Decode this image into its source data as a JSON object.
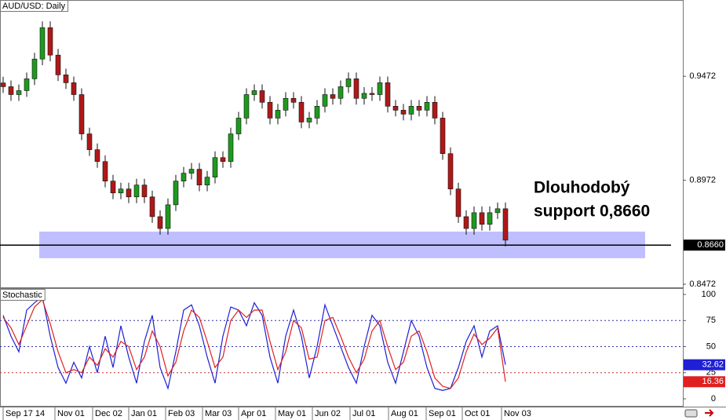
{
  "chart_data": [
    {
      "type": "candlestick",
      "title": "AUD/USD: Daily",
      "open": [
        0.944,
        0.9422,
        0.9384,
        0.9403,
        0.946,
        0.9555,
        0.9706,
        0.9574,
        0.9479,
        0.9441,
        0.9384,
        0.9195,
        0.9119,
        0.9062,
        0.8968,
        0.8911,
        0.893,
        0.8892,
        0.8949,
        0.8892,
        0.8797,
        0.874,
        0.8854,
        0.8968,
        0.9006,
        0.9025,
        0.8949,
        0.8987,
        0.9081,
        0.9062,
        0.9195,
        0.9271,
        0.9384,
        0.9403,
        0.9347,
        0.9271,
        0.9309,
        0.9366,
        0.9347,
        0.9252,
        0.9271,
        0.9328,
        0.9384,
        0.9366,
        0.9422,
        0.946,
        0.9366,
        0.939,
        0.9384,
        0.9441,
        0.9328,
        0.9309,
        0.929,
        0.9328,
        0.9309,
        0.9347,
        0.9271,
        0.91,
        0.893,
        0.8797,
        0.874,
        0.8816,
        0.876,
        0.8816,
        0.8835
      ],
      "high": [
        0.947,
        0.9452,
        0.9433,
        0.949,
        0.9585,
        0.9736,
        0.9736,
        0.9604,
        0.9509,
        0.9471,
        0.9414,
        0.9225,
        0.9149,
        0.9092,
        0.8998,
        0.896,
        0.896,
        0.8979,
        0.8979,
        0.8922,
        0.8827,
        0.8884,
        0.8998,
        0.9036,
        0.9055,
        0.9055,
        0.9017,
        0.9111,
        0.9111,
        0.9225,
        0.9301,
        0.9414,
        0.9433,
        0.9433,
        0.9377,
        0.9339,
        0.9396,
        0.9396,
        0.9377,
        0.9301,
        0.9358,
        0.9414,
        0.9414,
        0.9452,
        0.949,
        0.949,
        0.942,
        0.942,
        0.9471,
        0.9471,
        0.9358,
        0.9339,
        0.9358,
        0.9358,
        0.9377,
        0.9377,
        0.9301,
        0.913,
        0.896,
        0.8827,
        0.8846,
        0.8846,
        0.8846,
        0.8865,
        0.8865
      ],
      "low": [
        0.9392,
        0.9354,
        0.9354,
        0.9373,
        0.943,
        0.9525,
        0.9544,
        0.9449,
        0.9411,
        0.9354,
        0.9165,
        0.9089,
        0.9032,
        0.8938,
        0.8881,
        0.8881,
        0.8862,
        0.8862,
        0.8862,
        0.8767,
        0.871,
        0.871,
        0.8824,
        0.8938,
        0.8976,
        0.8919,
        0.8919,
        0.8957,
        0.9032,
        0.9032,
        0.9165,
        0.9241,
        0.9354,
        0.9317,
        0.9241,
        0.9241,
        0.9279,
        0.9317,
        0.9222,
        0.9222,
        0.9241,
        0.9298,
        0.9336,
        0.9336,
        0.9392,
        0.9336,
        0.9336,
        0.9354,
        0.9354,
        0.9298,
        0.9279,
        0.926,
        0.926,
        0.9279,
        0.9279,
        0.9241,
        0.907,
        0.89,
        0.8767,
        0.871,
        0.871,
        0.873,
        0.873,
        0.8786,
        0.8654
      ],
      "close": [
        0.9422,
        0.9384,
        0.9403,
        0.946,
        0.9555,
        0.9706,
        0.9574,
        0.9479,
        0.9441,
        0.9384,
        0.9195,
        0.9119,
        0.9062,
        0.8968,
        0.8911,
        0.893,
        0.8892,
        0.8949,
        0.8892,
        0.8797,
        0.874,
        0.8854,
        0.8968,
        0.9006,
        0.9025,
        0.8949,
        0.8987,
        0.9081,
        0.9062,
        0.9195,
        0.9271,
        0.9384,
        0.9403,
        0.9347,
        0.9271,
        0.9309,
        0.9366,
        0.9347,
        0.9252,
        0.9271,
        0.9328,
        0.9384,
        0.9366,
        0.9422,
        0.946,
        0.9366,
        0.939,
        0.9384,
        0.9441,
        0.9328,
        0.9309,
        0.929,
        0.9328,
        0.9309,
        0.9347,
        0.9271,
        0.91,
        0.893,
        0.8797,
        0.874,
        0.8816,
        0.876,
        0.8816,
        0.8835,
        0.8684
      ],
      "up_color": "#1e9a1e",
      "down_color": "#b01818",
      "xlim": [
        -0.4,
        86.6
      ],
      "ylim": [
        0.8457,
        0.9839
      ],
      "yticks": [
        0.9472,
        0.8972,
        0.8472
      ],
      "support_zone": {
        "xlim": [
          4.6,
          81.8
        ],
        "ylim": [
          0.8597,
          0.8725
        ],
        "color": "#aaaaff"
      },
      "support_line": 0.866,
      "markers": [
        {
          "value": 0.866,
          "label": "0.8660",
          "color": "#000000"
        }
      ],
      "annotation": [
        "Dlouhodobý",
        "support 0,8660"
      ]
    },
    {
      "type": "line",
      "title": "Stochastic",
      "series": [
        {
          "color": "#1f1fd6",
          "values": [
            80,
            60,
            45,
            85,
            92,
            98,
            60,
            30,
            15,
            35,
            20,
            50,
            25,
            60,
            30,
            70,
            40,
            15,
            55,
            80,
            30,
            10,
            45,
            85,
            90,
            70,
            40,
            15,
            60,
            88,
            85,
            70,
            92,
            80,
            40,
            15,
            60,
            85,
            60,
            20,
            50,
            90,
            70,
            50,
            30,
            15,
            50,
            80,
            70,
            35,
            15,
            45,
            75,
            60,
            30,
            10,
            8,
            10,
            30,
            55,
            70,
            40,
            65,
            70,
            32.62
          ]
        },
        {
          "color": "#e02020",
          "values": [
            78,
            68,
            52,
            70,
            88,
            95,
            72,
            45,
            25,
            28,
            25,
            40,
            32,
            48,
            40,
            55,
            50,
            28,
            40,
            65,
            50,
            22,
            35,
            65,
            85,
            78,
            55,
            30,
            40,
            75,
            85,
            78,
            85,
            85,
            55,
            28,
            45,
            75,
            68,
            38,
            40,
            75,
            78,
            60,
            40,
            25,
            38,
            65,
            75,
            50,
            28,
            35,
            60,
            65,
            45,
            20,
            12,
            10,
            20,
            45,
            62,
            52,
            58,
            68,
            16.36
          ]
        }
      ],
      "xlim": [
        -0.4,
        86.6
      ],
      "ylim": [
        -7.5,
        105.3
      ],
      "yticks": [
        0,
        25,
        50,
        75,
        100
      ],
      "levels": [
        75,
        50,
        25
      ],
      "level_colors": [
        "#3030a0",
        "#3030a0",
        "#c03030"
      ],
      "markers": [
        {
          "value": 32.62,
          "label": "32.62",
          "color": "#1f1fd6"
        },
        {
          "value": 16.36,
          "label": "16.36",
          "color": "#e02020"
        }
      ],
      "xticks": [
        {
          "value": 0,
          "label": "Sep 17 14"
        },
        {
          "value": 6.6,
          "label": "Nov 01"
        },
        {
          "value": 11.4,
          "label": "Dec 02"
        },
        {
          "value": 16,
          "label": "Jan 01"
        },
        {
          "value": 20.7,
          "label": "Feb 03"
        },
        {
          "value": 25.4,
          "label": "Mar 03"
        },
        {
          "value": 30,
          "label": "Apr 01"
        },
        {
          "value": 34.7,
          "label": "May 01"
        },
        {
          "value": 39.4,
          "label": "Jun 02"
        },
        {
          "value": 44.2,
          "label": "Jul 01"
        },
        {
          "value": 49.1,
          "label": "Aug 01"
        },
        {
          "value": 53.9,
          "label": "Sep 01"
        },
        {
          "value": 58.5,
          "label": "Oct 01"
        },
        {
          "value": 63.5,
          "label": "Nov 03"
        }
      ]
    }
  ]
}
